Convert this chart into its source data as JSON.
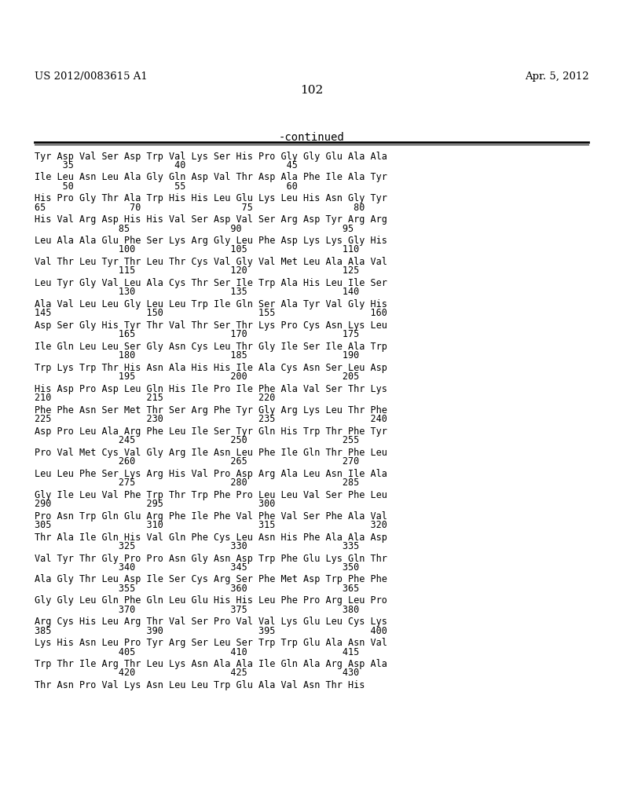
{
  "header_left": "US 2012/0083615 A1",
  "header_right": "Apr. 5, 2012",
  "page_number": "102",
  "continued_label": "-continued",
  "background_color": "#ffffff",
  "text_color": "#000000",
  "lines": [
    [
      "Tyr Asp Val Ser Asp Trp Val Lys Ser His Pro Gly Gly Glu Ala Ala",
      "seq"
    ],
    [
      "     35                  40                  45",
      "num"
    ],
    [
      "Ile Leu Asn Leu Ala Gly Gln Asp Val Thr Asp Ala Phe Ile Ala Tyr",
      "seq"
    ],
    [
      "     50                  55                  60",
      "num"
    ],
    [
      "His Pro Gly Thr Ala Trp His His Leu Glu Lys Leu His Asn Gly Tyr",
      "seq"
    ],
    [
      "65               70                  75                  80",
      "num"
    ],
    [
      "His Val Arg Asp His His Val Ser Asp Val Ser Arg Asp Tyr Arg Arg",
      "seq"
    ],
    [
      "               85                  90                  95",
      "num"
    ],
    [
      "Leu Ala Ala Glu Phe Ser Lys Arg Gly Leu Phe Asp Lys Lys Gly His",
      "seq"
    ],
    [
      "               100                 105                 110",
      "num"
    ],
    [
      "Val Thr Leu Tyr Thr Leu Thr Cys Val Gly Val Met Leu Ala Ala Val",
      "seq"
    ],
    [
      "               115                 120                 125",
      "num"
    ],
    [
      "Leu Tyr Gly Val Leu Ala Cys Thr Ser Ile Trp Ala His Leu Ile Ser",
      "seq"
    ],
    [
      "               130                 135                 140",
      "num"
    ],
    [
      "Ala Val Leu Leu Gly Leu Leu Trp Ile Gln Ser Ala Tyr Val Gly His",
      "seq"
    ],
    [
      "145                 150                 155                 160",
      "num"
    ],
    [
      "Asp Ser Gly His Tyr Thr Val Thr Ser Thr Lys Pro Cys Asn Lys Leu",
      "seq"
    ],
    [
      "               165                 170                 175",
      "num"
    ],
    [
      "Ile Gln Leu Leu Ser Gly Asn Cys Leu Thr Gly Ile Ser Ile Ala Trp",
      "seq"
    ],
    [
      "               180                 185                 190",
      "num"
    ],
    [
      "Trp Lys Trp Thr His Asn Ala His His Ile Ala Cys Asn Ser Leu Asp",
      "seq"
    ],
    [
      "               195                 200                 205",
      "num"
    ],
    [
      "His Asp Pro Asp Leu Gln His Ile Pro Ile Phe Ala Val Ser Thr Lys",
      "seq"
    ],
    [
      "210                 215                 220",
      "num"
    ],
    [
      "Phe Phe Asn Ser Met Thr Ser Arg Phe Tyr Gly Arg Lys Leu Thr Phe",
      "seq"
    ],
    [
      "225                 230                 235                 240",
      "num"
    ],
    [
      "Asp Pro Leu Ala Arg Phe Leu Ile Ser Tyr Gln His Trp Thr Phe Tyr",
      "seq"
    ],
    [
      "               245                 250                 255",
      "num"
    ],
    [
      "Pro Val Met Cys Val Gly Arg Ile Asn Leu Phe Ile Gln Thr Phe Leu",
      "seq"
    ],
    [
      "               260                 265                 270",
      "num"
    ],
    [
      "Leu Leu Phe Ser Lys Arg His Val Pro Asp Arg Ala Leu Asn Ile Ala",
      "seq"
    ],
    [
      "               275                 280                 285",
      "num"
    ],
    [
      "Gly Ile Leu Val Phe Trp Thr Trp Phe Pro Leu Leu Val Ser Phe Leu",
      "seq"
    ],
    [
      "290                 295                 300",
      "num"
    ],
    [
      "Pro Asn Trp Gln Glu Arg Phe Ile Phe Val Phe Val Ser Phe Ala Val",
      "seq"
    ],
    [
      "305                 310                 315                 320",
      "num"
    ],
    [
      "Thr Ala Ile Gln His Val Gln Phe Cys Leu Asn His Phe Ala Ala Asp",
      "seq"
    ],
    [
      "               325                 330                 335",
      "num"
    ],
    [
      "Val Tyr Thr Gly Pro Pro Asn Gly Asn Asp Trp Phe Glu Lys Gln Thr",
      "seq"
    ],
    [
      "               340                 345                 350",
      "num"
    ],
    [
      "Ala Gly Thr Leu Asp Ile Ser Cys Arg Ser Phe Met Asp Trp Phe Phe",
      "seq"
    ],
    [
      "               355                 360                 365",
      "num"
    ],
    [
      "Gly Gly Leu Gln Phe Gln Leu Glu His His Leu Phe Pro Arg Leu Pro",
      "seq"
    ],
    [
      "               370                 375                 380",
      "num"
    ],
    [
      "Arg Cys His Leu Arg Thr Val Ser Pro Val Val Lys Glu Leu Cys Lys",
      "seq"
    ],
    [
      "385                 390                 395                 400",
      "num"
    ],
    [
      "Lys His Asn Leu Pro Tyr Arg Ser Leu Ser Trp Trp Glu Ala Asn Val",
      "seq"
    ],
    [
      "               405                 410                 415",
      "num"
    ],
    [
      "Trp Thr Ile Arg Thr Leu Lys Asn Ala Ala Ile Gln Ala Arg Asp Ala",
      "seq"
    ],
    [
      "               420                 425                 430",
      "num"
    ],
    [
      "Thr Asn Pro Val Lys Asn Leu Leu Trp Glu Ala Val Asn Thr His",
      "seq"
    ]
  ]
}
